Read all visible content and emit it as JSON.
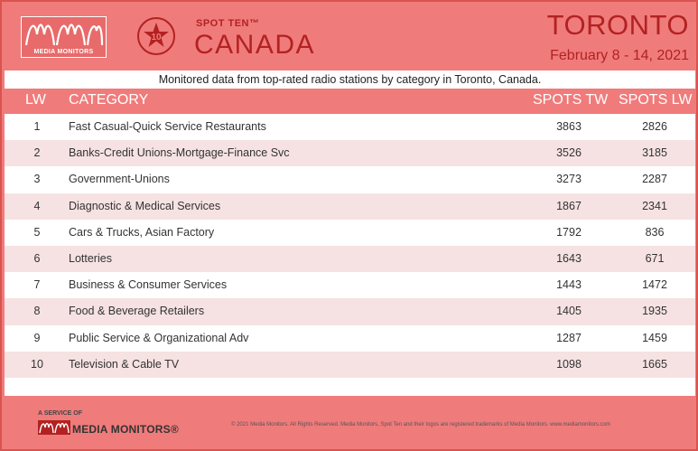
{
  "brand": {
    "logo_text": "MEDIA MONITORS",
    "spot_ten": "SPOT TEN™",
    "badge_number": "10",
    "country": "CANADA"
  },
  "header": {
    "city": "TORONTO",
    "dates": "February 8 - 14, 2021"
  },
  "subtitle": "Monitored data from top-rated radio stations by category in Toronto, Canada.",
  "table": {
    "columns": [
      "LW",
      "CATEGORY",
      "SPOTS TW",
      "SPOTS LW"
    ],
    "rows": [
      {
        "rank": "1",
        "category": "Fast Casual-Quick Service Restaurants",
        "tw": "3863",
        "lw": "2826"
      },
      {
        "rank": "2",
        "category": "Banks-Credit Unions-Mortgage-Finance Svc",
        "tw": "3526",
        "lw": "3185"
      },
      {
        "rank": "3",
        "category": "Government-Unions",
        "tw": "3273",
        "lw": "2287"
      },
      {
        "rank": "4",
        "category": "Diagnostic & Medical Services",
        "tw": "1867",
        "lw": "2341"
      },
      {
        "rank": "5",
        "category": "Cars & Trucks, Asian Factory",
        "tw": "1792",
        "lw": "836"
      },
      {
        "rank": "6",
        "category": "Lotteries",
        "tw": "1643",
        "lw": "671"
      },
      {
        "rank": "7",
        "category": "Business & Consumer Services",
        "tw": "1443",
        "lw": "1472"
      },
      {
        "rank": "8",
        "category": "Food & Beverage Retailers",
        "tw": "1405",
        "lw": "1935"
      },
      {
        "rank": "9",
        "category": "Public Service & Organizational Adv",
        "tw": "1287",
        "lw": "1459"
      },
      {
        "rank": "10",
        "category": "Television & Cable TV",
        "tw": "1098",
        "lw": "1665"
      }
    ]
  },
  "footer": {
    "service": "A SERVICE OF",
    "name": "MEDIA MONITORS",
    "registered": "®",
    "copyright": "© 2021 Media Monitors. All Rights Reserved. Media Monitors, Spot Ten and their logos are registered trademarks of Media Monitors. www.mediamonitors.com"
  },
  "colors": {
    "background": "#f07b7b",
    "accent": "#b22222",
    "row_alt": "#f6e2e2"
  }
}
